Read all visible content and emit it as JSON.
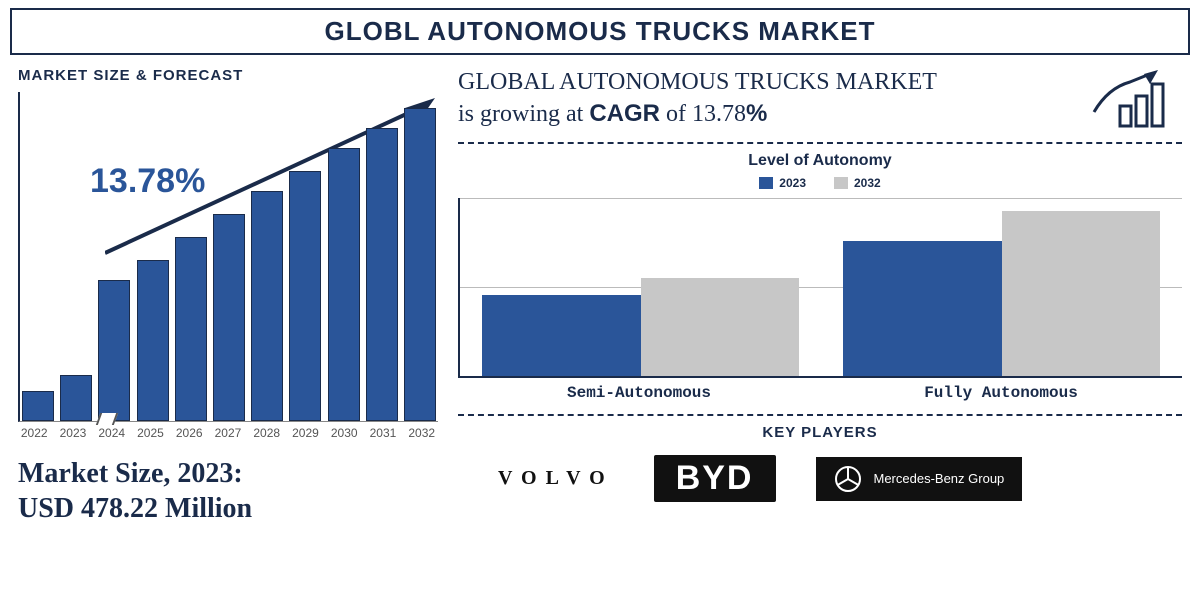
{
  "title_banner": "GLOBL AUTONOMOUS TRUCKS MARKET",
  "left": {
    "section_label": "MARKET SIZE & FORECAST",
    "forecast_chart": {
      "type": "bar",
      "years": [
        "2022",
        "2023",
        "2024",
        "2025",
        "2026",
        "2027",
        "2028",
        "2029",
        "2030",
        "2031",
        "2032"
      ],
      "values_pct": [
        9,
        14,
        43,
        49,
        56,
        63,
        70,
        76,
        83,
        89,
        95
      ],
      "bar_color": "#2a5599",
      "bar_border": "#1a2b4a",
      "axis_color": "#1a2b4a",
      "cagr_overlay": "13.78%",
      "cagr_overlay_color": "#2a5599",
      "cagr_overlay_fontsize": 34,
      "trend_arrow_color": "#1a2b4a"
    },
    "market_size_label": "Market Size, 2023:",
    "market_size_value": "USD 478.22 Million",
    "market_size_color": "#1a2b4a",
    "market_size_fontsize": 28
  },
  "right": {
    "headline_line1": "GLOBAL AUTONOMOUS TRUCKS MARKET",
    "headline_line2_pre": "is growing at ",
    "headline_cagr_word": "CAGR",
    "headline_of": " of  ",
    "headline_cagr_value": "13.78",
    "headline_percent": "%",
    "headline_color": "#1a2b4a",
    "growth_icon_color": "#1a2b4a",
    "autonomy_chart": {
      "type": "bar",
      "title": "Level of Autonomy",
      "legend": [
        {
          "label": "2023",
          "color": "#2a5599"
        },
        {
          "label": "2032",
          "color": "#c7c7c7"
        }
      ],
      "categories": [
        "Semi-Autonomous",
        "Fully Autonomous"
      ],
      "series": {
        "2023": [
          46,
          76
        ],
        "2032": [
          55,
          93
        ]
      },
      "axis_color": "#1a2b4a",
      "grid_color": "#bbbbbb",
      "category_fontfamily": "Courier New",
      "category_fontsize": 16
    },
    "key_players": {
      "label": "KEY PLAYERS",
      "items": [
        "VOLVO",
        "BYD",
        "Mercedes-Benz Group"
      ]
    }
  },
  "colors": {
    "primary": "#1a2b4a",
    "bar_blue": "#2a5599",
    "bar_grey": "#c7c7c7",
    "background": "#ffffff",
    "dash": "#1a2b4a"
  }
}
